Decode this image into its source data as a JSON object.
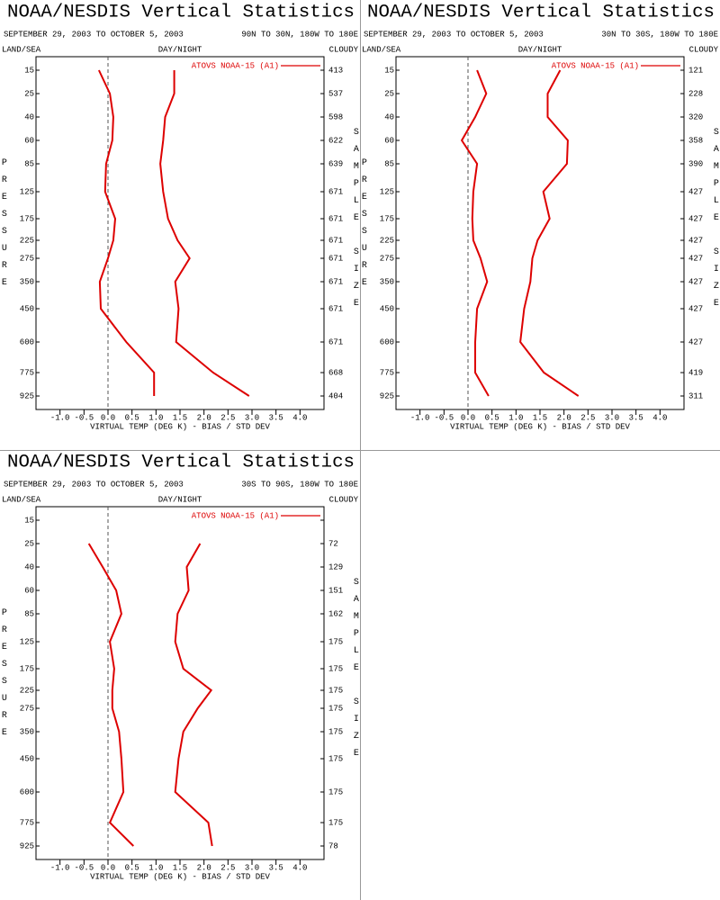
{
  "chart_data": [
    {
      "type": "line",
      "title": "NOAA/NESDIS Vertical Statistics",
      "subtitle": "SEPTEMBER 29, 2003 TO OCTOBER 5, 2003",
      "region": "90N TO 30N, 180W TO 180E",
      "corner_labels": [
        "LAND/SEA",
        "DAY/NIGHT",
        "CLOUDY"
      ],
      "y_label": "PRESSURE",
      "y2_label": "SAMPLE SIZE",
      "x_label": "VIRTUAL TEMP (DEG K) - BIAS / STD DEV",
      "categories": [
        15,
        25,
        40,
        60,
        85,
        125,
        175,
        225,
        275,
        350,
        450,
        600,
        775,
        925
      ],
      "sample_size": [
        413,
        537,
        598,
        622,
        639,
        671,
        671,
        671,
        671,
        671,
        671,
        671,
        668,
        404
      ],
      "series": [
        {
          "name": "ATOVS NOAA-15 (A1)",
          "color": "#dd0000",
          "values": [
            -0.19,
            0.04,
            0.11,
            0.09,
            -0.04,
            -0.06,
            0.15,
            0.11,
            0.0,
            -0.17,
            -0.15,
            0.38,
            0.96,
            0.96
          ],
          "std_dev": [
            1.38,
            1.38,
            1.19,
            1.15,
            1.09,
            1.15,
            1.25,
            1.45,
            1.7,
            1.4,
            1.47,
            1.42,
            2.19,
            2.94
          ]
        }
      ],
      "xlim": [
        -1.5,
        4.5
      ],
      "xticks": [
        {
          "value": -1,
          "label": "-1.0"
        },
        {
          "value": -0.5,
          "label": "-0.5"
        },
        {
          "value": 0,
          "label": "0.0"
        },
        0.5,
        {
          "value": 1,
          "label": "1.0"
        },
        1.5,
        {
          "value": 2,
          "label": "2.0"
        },
        2.5,
        {
          "value": 3,
          "label": "3.0"
        },
        3.5,
        {
          "value": 4,
          "label": "4.0"
        }
      ]
    },
    {
      "type": "line",
      "title": "NOAA/NESDIS Vertical Statistics",
      "subtitle": "SEPTEMBER 29, 2003 TO OCTOBER 5, 2003",
      "region": "30N TO 30S, 180W TO 180E",
      "corner_labels": [
        "LAND/SEA",
        "DAY/NIGHT",
        "CLOUDY"
      ],
      "y_label": "PRESSURE",
      "y2_label": "SAMPLE SIZE",
      "x_label": "VIRTUAL TEMP (DEG K) - BIAS / STD DEV",
      "categories": [
        15,
        25,
        40,
        60,
        85,
        125,
        175,
        225,
        275,
        350,
        450,
        600,
        775,
        925
      ],
      "sample_size": [
        121,
        228,
        320,
        358,
        390,
        427,
        427,
        427,
        427,
        427,
        427,
        427,
        419,
        311
      ],
      "series": [
        {
          "name": "ATOVS NOAA-15 (A1)",
          "color": "#dd0000",
          "values": [
            0.19,
            0.38,
            0.15,
            -0.13,
            0.19,
            0.11,
            0.09,
            0.11,
            0.26,
            0.4,
            0.19,
            0.15,
            0.15,
            0.43
          ],
          "std_dev": [
            1.92,
            1.66,
            1.66,
            2.08,
            2.06,
            1.57,
            1.7,
            1.45,
            1.34,
            1.3,
            1.17,
            1.09,
            1.58,
            2.3
          ]
        }
      ],
      "xlim": [
        -1.5,
        4.5
      ],
      "xticks": [
        {
          "value": -1,
          "label": "-1.0"
        },
        {
          "value": -0.5,
          "label": "-0.5"
        },
        {
          "value": 0,
          "label": "0.0"
        },
        0.5,
        {
          "value": 1,
          "label": "1.0"
        },
        1.5,
        {
          "value": 2,
          "label": "2.0"
        },
        2.5,
        {
          "value": 3,
          "label": "3.0"
        },
        3.5,
        {
          "value": 4,
          "label": "4.0"
        }
      ]
    },
    {
      "type": "line",
      "title": "NOAA/NESDIS Vertical Statistics",
      "subtitle": "SEPTEMBER 29, 2003 TO OCTOBER 5, 2003",
      "region": "30S TO 90S, 180W TO 180E",
      "corner_labels": [
        "LAND/SEA",
        "DAY/NIGHT",
        "CLOUDY"
      ],
      "y_label": "PRESSURE",
      "y2_label": "SAMPLE SIZE",
      "x_label": "VIRTUAL TEMP (DEG K) - BIAS / STD DEV",
      "categories": [
        15,
        25,
        40,
        60,
        85,
        125,
        175,
        225,
        275,
        350,
        450,
        600,
        775,
        925
      ],
      "sample_size": [
        null,
        72,
        129,
        151,
        162,
        175,
        175,
        175,
        175,
        175,
        175,
        175,
        175,
        78
      ],
      "series": [
        {
          "name": "ATOVS NOAA-15 (A1)",
          "color": "#dd0000",
          "values": [
            null,
            -0.4,
            -0.11,
            0.17,
            0.28,
            0.04,
            0.13,
            0.09,
            0.09,
            0.23,
            0.28,
            0.32,
            0.04,
            0.53
          ],
          "std_dev": [
            null,
            1.92,
            1.64,
            1.68,
            1.45,
            1.4,
            1.57,
            2.15,
            1.87,
            1.57,
            1.47,
            1.4,
            2.09,
            2.17
          ]
        }
      ],
      "xlim": [
        -1.5,
        4.5
      ],
      "xticks": [
        {
          "value": -1,
          "label": "-1.0"
        },
        {
          "value": -0.5,
          "label": "-0.5"
        },
        {
          "value": 0,
          "label": "0.0"
        },
        0.5,
        {
          "value": 1,
          "label": "1.0"
        },
        1.5,
        {
          "value": 2,
          "label": "2.0"
        },
        2.5,
        {
          "value": 3,
          "label": "3.0"
        },
        3.5,
        {
          "value": 4,
          "label": "4.0"
        }
      ]
    }
  ]
}
